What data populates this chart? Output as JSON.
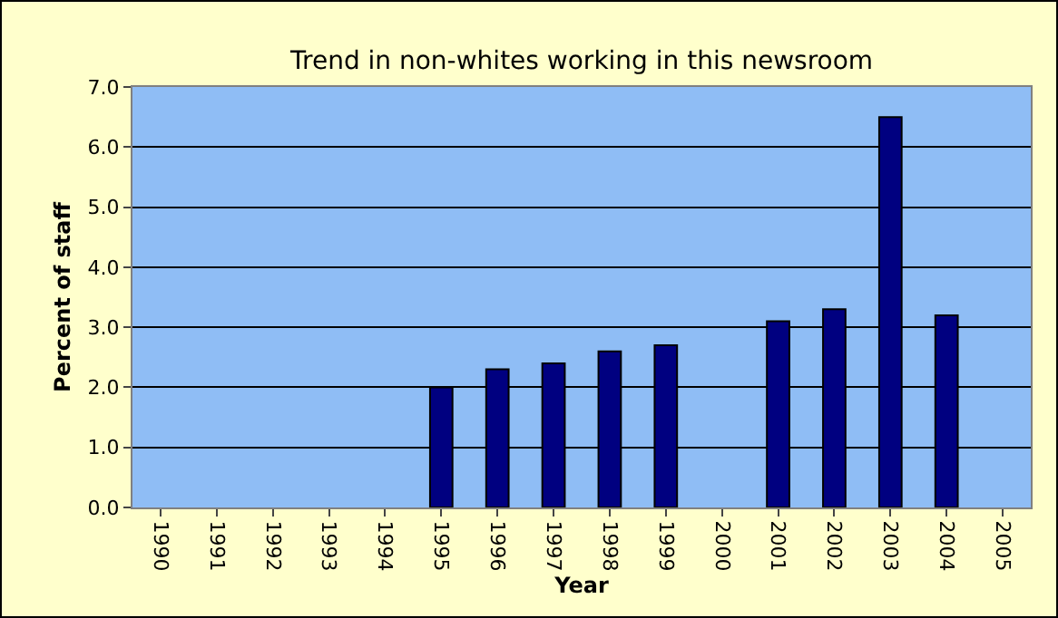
{
  "chart_data": {
    "type": "bar",
    "title": "Trend in non-whites working in this newsroom",
    "xlabel": "Year",
    "ylabel": "Percent of staff",
    "categories": [
      "1990",
      "1991",
      "1992",
      "1993",
      "1994",
      "1995",
      "1996",
      "1997",
      "1998",
      "1999",
      "2000",
      "2001",
      "2002",
      "2003",
      "2004",
      "2005"
    ],
    "series": [
      {
        "color": "#000080",
        "values": [
          null,
          null,
          null,
          null,
          null,
          2.0,
          2.3,
          2.4,
          2.6,
          2.7,
          null,
          3.1,
          3.3,
          6.5,
          3.2,
          null
        ]
      }
    ],
    "ylim": [
      0,
      7
    ],
    "yticks": [
      {
        "value": 0,
        "label": "0.0"
      },
      {
        "value": 1,
        "label": "1.0"
      },
      {
        "value": 2,
        "label": "2.0"
      },
      {
        "value": 3,
        "label": "3.0"
      },
      {
        "value": 4,
        "label": "4.0"
      },
      {
        "value": 5,
        "label": "5.0"
      },
      {
        "value": 6,
        "label": "6.0"
      },
      {
        "value": 7,
        "label": "7.0"
      }
    ],
    "grid": "y"
  }
}
